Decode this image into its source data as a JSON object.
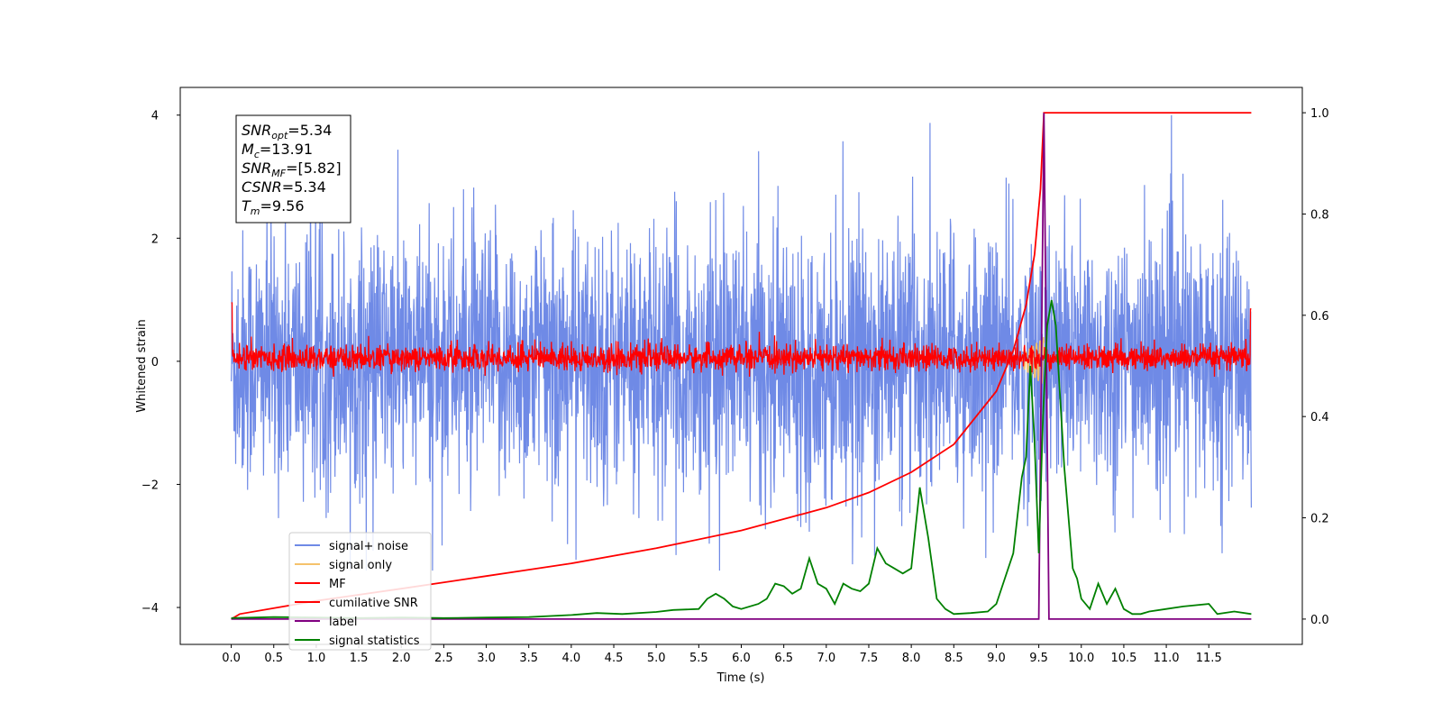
{
  "chart_data": {
    "type": "line",
    "title": "",
    "xlabel": "Time (s)",
    "ylabel": "Whitened strain",
    "y2label": "",
    "xlim": [
      -0.6,
      12.6
    ],
    "ylim": [
      -4.6,
      4.45
    ],
    "y2lim": [
      -0.05,
      1.05
    ],
    "x_ticks": [
      "0.0",
      "0.5",
      "1.0",
      "1.5",
      "2.0",
      "2.5",
      "3.0",
      "3.5",
      "4.0",
      "4.5",
      "5.0",
      "5.5",
      "6.0",
      "6.5",
      "7.0",
      "7.5",
      "8.0",
      "8.5",
      "9.0",
      "9.5",
      "10.0",
      "10.5",
      "11.0",
      "11.5"
    ],
    "x_tick_values": [
      0,
      0.5,
      1,
      1.5,
      2,
      2.5,
      3,
      3.5,
      4,
      4.5,
      5,
      5.5,
      6,
      6.5,
      7,
      7.5,
      8,
      8.5,
      9,
      9.5,
      10,
      10.5,
      11,
      11.5
    ],
    "y_ticks": [
      "−4",
      "−2",
      "0",
      "2",
      "4"
    ],
    "y_tick_values": [
      -4,
      -2,
      0,
      2,
      4
    ],
    "y2_ticks": [
      "0.0",
      "0.2",
      "0.4",
      "0.6",
      "0.8",
      "1.0"
    ],
    "y2_tick_values": [
      0,
      0.2,
      0.4,
      0.6,
      0.8,
      1.0
    ],
    "grid": false,
    "legend_position": "lower-left",
    "annotation": [
      {
        "base": "SNR",
        "sub": "opt",
        "value": "=5.34"
      },
      {
        "base": "M",
        "sub": "c",
        "value": "=13.91"
      },
      {
        "base": "SNR",
        "sub": "MF",
        "value": "=[5.82]"
      },
      {
        "base": "CSNR",
        "sub": "",
        "value": "=5.34"
      },
      {
        "base": "T",
        "sub": "m",
        "value": "=9.56"
      }
    ],
    "series": [
      {
        "name": "signal+ noise",
        "color": "#6f8ae6",
        "axis": "left",
        "description": "dense noise, amplitude ~±2.5, peaks near ±4",
        "x_range": [
          0,
          12.0
        ],
        "envelope": [
          -3.4,
          4.0
        ]
      },
      {
        "name": "signal only",
        "color": "#f5c26b",
        "axis": "left",
        "x_range": [
          9.3,
          9.56
        ],
        "envelope": [
          -0.3,
          0.45
        ]
      },
      {
        "name": "MF",
        "color": "#ff0000",
        "axis": "left",
        "x_range": [
          0,
          12.0
        ],
        "envelope": [
          -0.25,
          0.55
        ]
      },
      {
        "name": "cumilative SNR",
        "color": "#ff0000",
        "axis": "right",
        "x": [
          0,
          0.1,
          1,
          2,
          3,
          4,
          5,
          6,
          7,
          7.5,
          8,
          8.5,
          9,
          9.2,
          9.35,
          9.45,
          9.52,
          9.56,
          12.0
        ],
        "y": [
          0,
          0.01,
          0.036,
          0.06,
          0.085,
          0.11,
          0.14,
          0.175,
          0.22,
          0.25,
          0.29,
          0.345,
          0.45,
          0.53,
          0.62,
          0.72,
          0.85,
          1.0,
          1.0
        ]
      },
      {
        "name": "label",
        "color": "#800080",
        "axis": "right",
        "x": [
          0,
          9.5,
          9.56,
          9.62,
          12.0
        ],
        "y": [
          0,
          0,
          1.0,
          0,
          0
        ]
      },
      {
        "name": "signal statistics",
        "color": "#008000",
        "axis": "right",
        "x": [
          0,
          0.5,
          1,
          1.5,
          2,
          2.5,
          3,
          3.5,
          4,
          4.3,
          4.6,
          5,
          5.2,
          5.5,
          5.6,
          5.7,
          5.8,
          5.9,
          6.0,
          6.2,
          6.3,
          6.4,
          6.5,
          6.6,
          6.7,
          6.8,
          6.9,
          7.0,
          7.1,
          7.2,
          7.3,
          7.4,
          7.5,
          7.6,
          7.7,
          7.8,
          7.9,
          8.0,
          8.1,
          8.2,
          8.3,
          8.4,
          8.5,
          8.7,
          8.9,
          9.0,
          9.1,
          9.2,
          9.3,
          9.35,
          9.4,
          9.45,
          9.5,
          9.55,
          9.6,
          9.65,
          9.7,
          9.8,
          9.9,
          9.95,
          10.0,
          10.1,
          10.2,
          10.3,
          10.4,
          10.5,
          10.6,
          10.7,
          10.8,
          11.0,
          11.2,
          11.5,
          11.6,
          11.8,
          12.0
        ],
        "y": [
          0.002,
          0.004,
          0.003,
          0.002,
          0.003,
          0.002,
          0.003,
          0.004,
          0.008,
          0.012,
          0.01,
          0.014,
          0.018,
          0.02,
          0.04,
          0.05,
          0.04,
          0.025,
          0.02,
          0.03,
          0.04,
          0.07,
          0.065,
          0.05,
          0.06,
          0.12,
          0.07,
          0.06,
          0.03,
          0.07,
          0.06,
          0.055,
          0.07,
          0.14,
          0.11,
          0.1,
          0.09,
          0.1,
          0.26,
          0.16,
          0.04,
          0.02,
          0.01,
          0.012,
          0.015,
          0.03,
          0.08,
          0.13,
          0.28,
          0.32,
          0.5,
          0.35,
          0.13,
          0.4,
          0.58,
          0.63,
          0.58,
          0.3,
          0.1,
          0.08,
          0.04,
          0.02,
          0.07,
          0.03,
          0.06,
          0.02,
          0.01,
          0.01,
          0.015,
          0.02,
          0.025,
          0.03,
          0.01,
          0.015,
          0.01
        ]
      }
    ]
  }
}
